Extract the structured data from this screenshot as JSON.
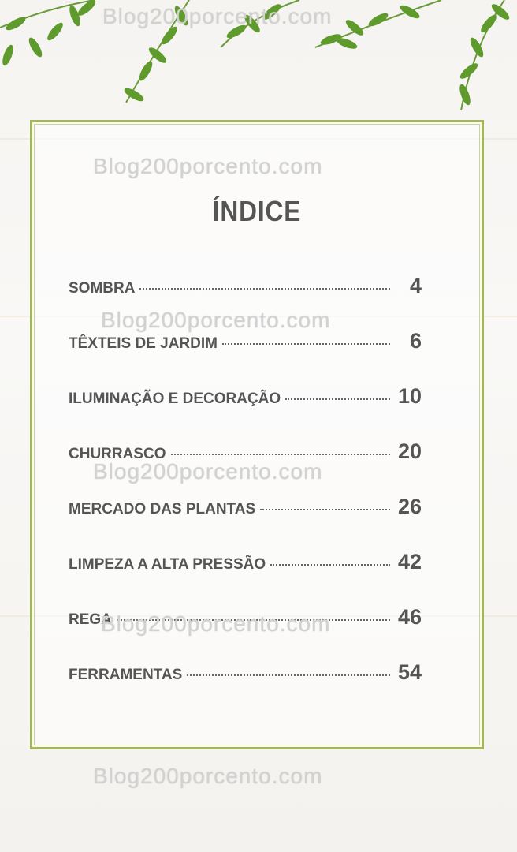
{
  "title": "ÍNDICE",
  "watermark": "Blog200porcento.com",
  "colors": {
    "border": "#a3b65a",
    "text": "#555555",
    "leaf": "#5f9a2c"
  },
  "entries": [
    {
      "label": "SOMBRA",
      "page": "4"
    },
    {
      "label": "TÊXTEIS DE JARDIM",
      "page": "6"
    },
    {
      "label": "ILUMINAÇÃO E DECORAÇÃO",
      "page": "10"
    },
    {
      "label": "CHURRASCO",
      "page": "20"
    },
    {
      "label": "MERCADO DAS PLANTAS",
      "page": "26"
    },
    {
      "label": "LIMPEZA A ALTA PRESSÃO",
      "page": "42"
    },
    {
      "label": "REGA",
      "page": "46"
    },
    {
      "label": "FERRAMENTAS",
      "page": "54"
    }
  ]
}
